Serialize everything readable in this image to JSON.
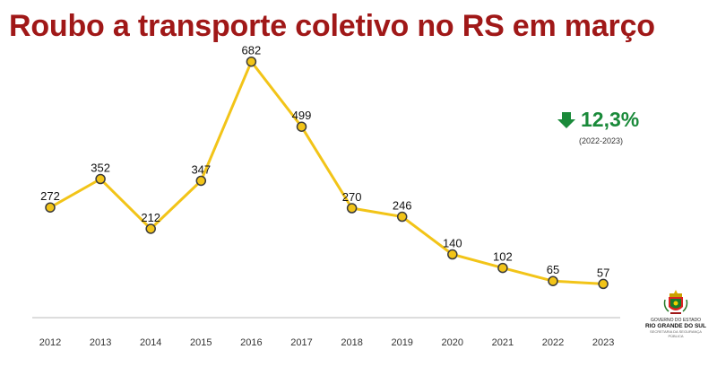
{
  "title": "Roubo a transporte coletivo no RS em março",
  "change": {
    "value": "12,3%",
    "period": "(2022-2023)",
    "direction": "down",
    "color": "#1a8a3a"
  },
  "logo": {
    "line1": "GOVERNO DO ESTADO",
    "line2": "RIO GRANDE DO SUL",
    "line3": "SECRETARIA DA SEGURANÇA PÚBLICA"
  },
  "colors": {
    "title": "#a01818",
    "line": "#f2c418",
    "marker_fill": "#f2c418",
    "marker_stroke": "#3a3a3a",
    "axis": "#bbbbbb"
  },
  "chart_data": {
    "type": "line",
    "categories": [
      "2012",
      "2013",
      "2014",
      "2015",
      "2016",
      "2017",
      "2018",
      "2019",
      "2020",
      "2021",
      "2022",
      "2023"
    ],
    "values": [
      272,
      352,
      212,
      347,
      682,
      499,
      270,
      246,
      140,
      102,
      65,
      57
    ],
    "data_labels": [
      "272",
      "352",
      "212",
      "347",
      "682",
      "499",
      "270",
      "246",
      "140",
      "102",
      "65",
      "57"
    ],
    "title": "Roubo a transporte coletivo no RS em março",
    "xlabel": "",
    "ylabel": "",
    "ylim": [
      0,
      700
    ],
    "grid": false,
    "legend": "none"
  }
}
